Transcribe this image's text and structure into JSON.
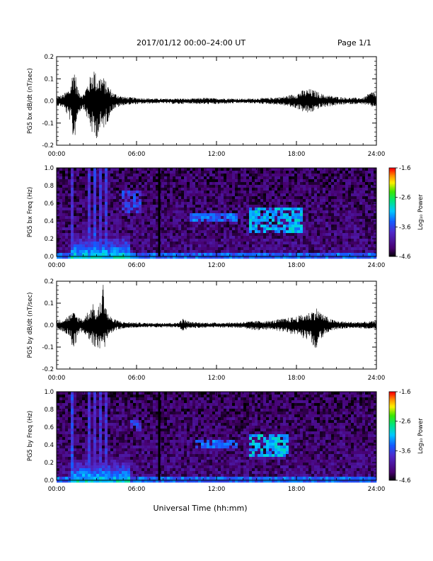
{
  "header": {
    "title": "2017/01/12  00:00–24:00 UT",
    "page": "Page 1/1"
  },
  "xlabel": "Universal Time (hh:mm)",
  "x_ticks": [
    "00:00",
    "06:00",
    "12:00",
    "18:00",
    "24:00"
  ],
  "colorbar": {
    "label": "Log₁₀ Power",
    "ticks": [
      "-1.6",
      "-2.6",
      "-3.6",
      "-4.6"
    ],
    "range": [
      -4.6,
      -1.6
    ]
  },
  "chart_data": [
    {
      "type": "line",
      "ylabel": "PG5 bx dB/dt (nT/sec)",
      "xlim": [
        0,
        24
      ],
      "ylim": [
        -0.2,
        0.2
      ],
      "y_ticks": [
        "0.2",
        "0.1",
        "0.0",
        "-0.1",
        "-0.2"
      ],
      "x_units": "hours UT",
      "envelope": {
        "x": [
          0,
          0.5,
          1.0,
          1.3,
          1.6,
          2.0,
          2.5,
          2.8,
          3.0,
          3.4,
          3.8,
          4.2,
          5.0,
          6.0,
          7.0,
          8.0,
          9.0,
          10.0,
          11.0,
          12.0,
          13.0,
          14.0,
          15.0,
          16.0,
          17.0,
          18.0,
          18.5,
          19.0,
          19.5,
          20.0,
          20.5,
          21.0,
          22.0,
          23.0,
          23.8,
          24.0
        ],
        "max": [
          0.02,
          0.03,
          0.06,
          0.17,
          0.05,
          0.03,
          0.11,
          0.16,
          0.11,
          0.12,
          0.08,
          0.04,
          0.02,
          0.015,
          0.012,
          0.01,
          0.012,
          0.01,
          0.015,
          0.012,
          0.012,
          0.01,
          0.012,
          0.015,
          0.02,
          0.035,
          0.05,
          0.055,
          0.045,
          0.03,
          0.025,
          0.02,
          0.015,
          0.015,
          0.05,
          0.02
        ],
        "min": [
          -0.02,
          -0.03,
          -0.09,
          -0.2,
          -0.06,
          -0.03,
          -0.12,
          -0.18,
          -0.17,
          -0.14,
          -0.1,
          -0.04,
          -0.02,
          -0.015,
          -0.012,
          -0.01,
          -0.015,
          -0.012,
          -0.015,
          -0.015,
          -0.012,
          -0.01,
          -0.012,
          -0.015,
          -0.02,
          -0.035,
          -0.05,
          -0.06,
          -0.04,
          -0.03,
          -0.025,
          -0.02,
          -0.015,
          -0.015,
          -0.03,
          -0.02
        ]
      }
    },
    {
      "type": "heatmap",
      "ylabel": "PG5 bx Freq (Hz)",
      "xlim": [
        0,
        24
      ],
      "ylim": [
        0.0,
        1.0
      ],
      "y_ticks": [
        "1.0",
        "0.8",
        "0.6",
        "0.4",
        "0.2",
        "0.0"
      ],
      "value_units": "log10 power",
      "background_level": -4.2,
      "features": [
        {
          "kind": "low_freq_band",
          "x_range": [
            0,
            24
          ],
          "freq_max": 0.05,
          "level": -3.4
        },
        {
          "kind": "broadband_bursts",
          "x": [
            1.2,
            2.5,
            2.8,
            3.3,
            3.8
          ],
          "freq_max": 1.0,
          "level": -3.3
        },
        {
          "kind": "enhancement",
          "x_range": [
            1.0,
            5.5
          ],
          "freq_max": 0.25,
          "level": -3.0
        },
        {
          "kind": "band",
          "x_range": [
            4.8,
            6.3
          ],
          "freq_range": [
            0.5,
            0.75
          ],
          "level": -3.6
        },
        {
          "kind": "data_gap_line",
          "x": 7.7
        },
        {
          "kind": "band",
          "x_range": [
            10.0,
            13.5
          ],
          "freq_range": [
            0.38,
            0.5
          ],
          "level": -3.4
        },
        {
          "kind": "band",
          "x_range": [
            14.5,
            18.5
          ],
          "freq_range": [
            0.28,
            0.55
          ],
          "level": -3.1
        }
      ]
    },
    {
      "type": "line",
      "ylabel": "PG5 by dB/dt (nT/sec)",
      "xlim": [
        0,
        24
      ],
      "ylim": [
        -0.2,
        0.2
      ],
      "y_ticks": [
        "0.2",
        "0.1",
        "0.0",
        "-0.1",
        "-0.2"
      ],
      "x_units": "hours UT",
      "envelope": {
        "x": [
          0,
          0.5,
          1.0,
          1.3,
          1.6,
          2.0,
          2.5,
          2.8,
          3.0,
          3.3,
          3.5,
          3.8,
          4.2,
          5.0,
          6.0,
          7.0,
          8.0,
          9.0,
          9.5,
          10.0,
          11.0,
          12.0,
          13.0,
          14.0,
          15.0,
          16.0,
          17.0,
          18.0,
          19.0,
          19.5,
          20.0,
          20.5,
          21.0,
          22.0,
          23.0,
          24.0
        ],
        "max": [
          0.02,
          0.03,
          0.05,
          0.06,
          0.04,
          0.03,
          0.08,
          0.1,
          0.05,
          0.12,
          0.2,
          0.06,
          0.03,
          0.015,
          0.012,
          0.01,
          0.012,
          0.01,
          0.03,
          0.015,
          0.012,
          0.012,
          0.012,
          0.015,
          0.02,
          0.02,
          0.03,
          0.04,
          0.06,
          0.08,
          0.05,
          0.03,
          0.02,
          0.015,
          0.015,
          0.02
        ],
        "min": [
          -0.02,
          -0.03,
          -0.05,
          -0.13,
          -0.04,
          -0.03,
          -0.07,
          -0.1,
          -0.1,
          -0.14,
          -0.13,
          -0.06,
          -0.03,
          -0.015,
          -0.012,
          -0.01,
          -0.012,
          -0.01,
          -0.03,
          -0.015,
          -0.012,
          -0.012,
          -0.012,
          -0.015,
          -0.025,
          -0.02,
          -0.03,
          -0.05,
          -0.07,
          -0.12,
          -0.05,
          -0.03,
          -0.02,
          -0.015,
          -0.015,
          -0.02
        ]
      }
    },
    {
      "type": "heatmap",
      "ylabel": "PG5 by Freq (Hz)",
      "xlim": [
        0,
        24
      ],
      "ylim": [
        0.0,
        1.0
      ],
      "y_ticks": [
        "1.0",
        "0.8",
        "0.6",
        "0.4",
        "0.2",
        "0.0"
      ],
      "value_units": "log10 power",
      "background_level": -4.2,
      "features": [
        {
          "kind": "low_freq_band",
          "x_range": [
            0,
            24
          ],
          "freq_max": 0.05,
          "level": -3.4
        },
        {
          "kind": "broadband_bursts",
          "x": [
            1.2,
            2.5,
            2.8,
            3.3,
            3.8
          ],
          "freq_max": 1.0,
          "level": -3.3
        },
        {
          "kind": "enhancement",
          "x_range": [
            1.0,
            5.5
          ],
          "freq_max": 0.25,
          "level": -3.0
        },
        {
          "kind": "band",
          "x_range": [
            5.5,
            6.3
          ],
          "freq_range": [
            0.55,
            0.68
          ],
          "level": -3.6
        },
        {
          "kind": "data_gap_line",
          "x": 7.7
        },
        {
          "kind": "band",
          "x_range": [
            10.5,
            13.5
          ],
          "freq_range": [
            0.36,
            0.46
          ],
          "level": -3.4
        },
        {
          "kind": "band",
          "x_range": [
            14.5,
            17.5
          ],
          "freq_range": [
            0.25,
            0.52
          ],
          "level": -3.1
        }
      ]
    }
  ]
}
